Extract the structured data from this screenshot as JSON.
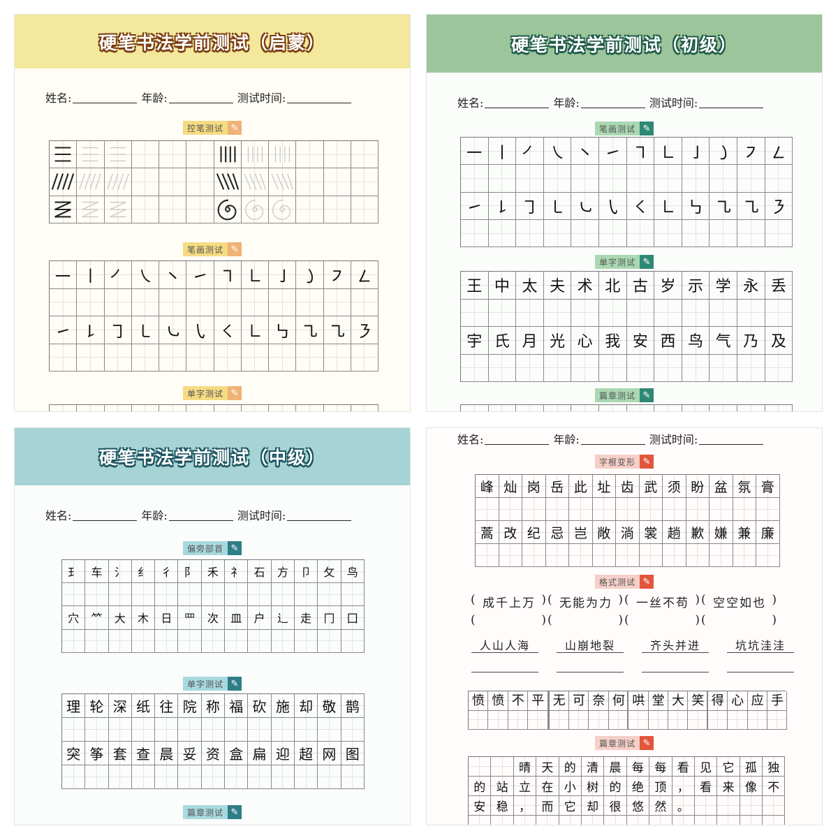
{
  "fields": {
    "name": "姓名:",
    "age": "年龄:",
    "time": "测试时间:"
  },
  "colors": {
    "yellow": "#f3e89c",
    "green": "#9cc59b",
    "teal": "#a6d4d6",
    "pink_accent": "#e2563b"
  },
  "panels": {
    "qimeng": {
      "title": "硬笔书法学前测试（启蒙）",
      "sections": {
        "kongbi": {
          "label": "控笔测试",
          "rows": [
            [
              "horizontal-lines",
              "vertical-lines"
            ],
            [
              "slash-lines",
              "backslash-lines"
            ],
            [
              "zigzag",
              "spiral"
            ]
          ]
        },
        "bihua": {
          "label": "笔画测试",
          "rows": [
            [
              "㇐",
              "㇑",
              "㇒",
              "㇏",
              "㇔",
              "㇀",
              "㇕",
              "㇗",
              "㇚",
              "㇁",
              "㇇",
              "㇜"
            ],
            [
              "㇀",
              "㇙",
              "㇆",
              "㇄",
              "㇃",
              "㇂",
              "㇛",
              "㇗",
              "㇉",
              "㇈",
              "㇈",
              "㇋"
            ]
          ]
        },
        "danzi": {
          "label": "单字测试"
        }
      }
    },
    "chuji": {
      "title": "硬笔书法学前测试（初级）",
      "sections": {
        "bihua": {
          "label": "笔画测试",
          "rows": [
            [
              "㇐",
              "㇑",
              "㇒",
              "㇏",
              "㇔",
              "㇀",
              "㇕",
              "㇗",
              "㇚",
              "㇁",
              "㇇",
              "㇜"
            ],
            [
              "㇀",
              "㇙",
              "㇆",
              "㇄",
              "㇃",
              "㇂",
              "㇛",
              "㇗",
              "㇉",
              "㇈",
              "㇈",
              "㇋"
            ]
          ]
        },
        "danzi": {
          "label": "单字测试",
          "rows": [
            [
              "王",
              "中",
              "太",
              "夫",
              "术",
              "北",
              "古",
              "岁",
              "示",
              "学",
              "永",
              "丢"
            ],
            [
              "宇",
              "氏",
              "月",
              "光",
              "心",
              "我",
              "安",
              "西",
              "鸟",
              "气",
              "乃",
              "及"
            ]
          ]
        },
        "pianzhang": {
          "label": "篇章测试"
        }
      }
    },
    "zhongji": {
      "title": "硬笔书法学前测试（中级）",
      "sections": {
        "pianpang": {
          "label": "偏旁部首",
          "rows": [
            [
              "⺩",
              "车",
              "氵",
              "纟",
              "彳",
              "阝",
              "禾",
              "礻",
              "石",
              "方",
              "卩",
              "攵",
              "鸟"
            ],
            [
              "穴",
              "⺮",
              "大",
              "木",
              "日",
              "罒",
              "次",
              "皿",
              "户",
              "辶",
              "走",
              "冂",
              "囗"
            ]
          ]
        },
        "danzi": {
          "label": "单字测试",
          "rows": [
            [
              "理",
              "轮",
              "深",
              "纸",
              "往",
              "院",
              "称",
              "福",
              "砍",
              "施",
              "却",
              "敬",
              "鹊"
            ],
            [
              "突",
              "筝",
              "套",
              "查",
              "晨",
              "妥",
              "资",
              "盒",
              "扁",
              "迎",
              "超",
              "网",
              "图"
            ]
          ]
        },
        "pianzhang": {
          "label": "篇章测试"
        }
      }
    },
    "gaoji": {
      "sections": {
        "zigen": {
          "label": "字根变形",
          "rows": [
            [
              "峰",
              "灿",
              "岗",
              "岳",
              "此",
              "址",
              "齿",
              "武",
              "须",
              "盼",
              "盆",
              "氛",
              "膏"
            ],
            [
              "蒿",
              "改",
              "纪",
              "忌",
              "岂",
              "敞",
              "淌",
              "裳",
              "趟",
              "歉",
              "嫌",
              "兼",
              "廉"
            ]
          ]
        },
        "geshi": {
          "label": "格式测试",
          "bracket_idioms": [
            "成千上万",
            "无能为力",
            "一丝不苟",
            "空空如也"
          ],
          "underlined_idioms": [
            "人山人海",
            "山崩地裂",
            "齐头并进",
            "坑坑洼洼"
          ],
          "grid_idioms": [
            "愤愤不平",
            "无可奈何",
            "哄堂大笑",
            "得心应手"
          ]
        },
        "pianzhang": {
          "label": "篇章测试",
          "text": "晴天的清晨每每看见它孤独的站立在小树的绝顶，看来像不安稳，而它却很悠然。"
        }
      }
    }
  }
}
